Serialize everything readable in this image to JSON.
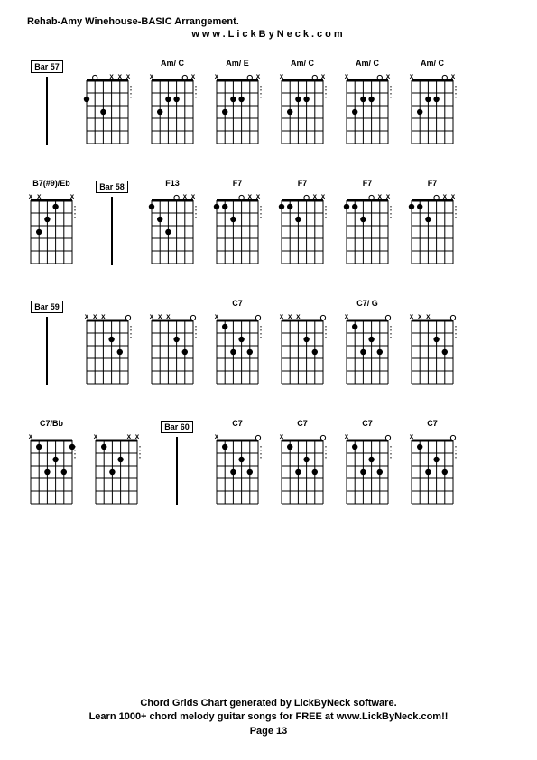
{
  "page": {
    "title": "Rehab-Amy Winehouse-BASIC Arrangement.",
    "subtitle": "www.LickByNeck.com",
    "footer_line1": "Chord Grids Chart generated by LickByNeck software.",
    "footer_line2": "Learn 1000+ chord melody guitar songs for FREE at www.LickByNeck.com!!",
    "footer_line3": "Page 13"
  },
  "grid_style": {
    "width": 46,
    "height": 70,
    "strings": 6,
    "frets": 5,
    "stroke": "#000000",
    "string_width": 1,
    "fret_width": 1,
    "nut_width": 3,
    "dot_radius": 3.2,
    "open_radius": 2.6
  },
  "rows": [
    [
      {
        "type": "bar",
        "label": "Bar 57"
      },
      {
        "type": "chord",
        "label": "",
        "mutes": [
          "",
          "",
          "",
          "x",
          "x",
          "x"
        ],
        "nut": true,
        "dots": [
          {
            "s": 2,
            "f": 1,
            "open": true
          },
          {
            "s": 1,
            "f": 2
          },
          {
            "s": 3,
            "f": 3
          }
        ]
      },
      {
        "type": "chord",
        "label": "Am/ C",
        "mutes": [
          "x",
          "",
          "",
          "",
          "",
          "x"
        ],
        "nut": true,
        "dots": [
          {
            "s": 5,
            "f": 1,
            "open": true
          },
          {
            "s": 4,
            "f": 2
          },
          {
            "s": 3,
            "f": 2
          },
          {
            "s": 2,
            "f": 3
          }
        ]
      },
      {
        "type": "chord",
        "label": "Am/ E",
        "mutes": [
          "x",
          "",
          "",
          "",
          "",
          "x"
        ],
        "nut": true,
        "dots": [
          {
            "s": 5,
            "f": 1,
            "open": true
          },
          {
            "s": 4,
            "f": 2
          },
          {
            "s": 3,
            "f": 2
          },
          {
            "s": 2,
            "f": 3
          }
        ]
      },
      {
        "type": "chord",
        "label": "Am/ C",
        "mutes": [
          "x",
          "",
          "",
          "",
          "",
          "x"
        ],
        "nut": true,
        "dots": [
          {
            "s": 5,
            "f": 1,
            "open": true
          },
          {
            "s": 4,
            "f": 2
          },
          {
            "s": 3,
            "f": 2
          },
          {
            "s": 2,
            "f": 3
          }
        ]
      },
      {
        "type": "chord",
        "label": "Am/ C",
        "mutes": [
          "x",
          "",
          "",
          "",
          "",
          "x"
        ],
        "nut": true,
        "dots": [
          {
            "s": 5,
            "f": 1,
            "open": true
          },
          {
            "s": 4,
            "f": 2
          },
          {
            "s": 3,
            "f": 2
          },
          {
            "s": 2,
            "f": 3
          }
        ]
      },
      {
        "type": "chord",
        "label": "Am/ C",
        "mutes": [
          "x",
          "",
          "",
          "",
          "",
          "x"
        ],
        "nut": true,
        "dots": [
          {
            "s": 5,
            "f": 1,
            "open": true
          },
          {
            "s": 4,
            "f": 2
          },
          {
            "s": 3,
            "f": 2
          },
          {
            "s": 2,
            "f": 3
          }
        ]
      }
    ],
    [
      {
        "type": "chord",
        "label": "B7(#9)/Eb",
        "mutes": [
          "x",
          "x",
          "",
          "",
          "",
          "x"
        ],
        "nut": true,
        "dots": [
          {
            "s": 4,
            "f": 1
          },
          {
            "s": 3,
            "f": 2
          },
          {
            "s": 2,
            "f": 3
          }
        ]
      },
      {
        "type": "bar",
        "label": "Bar 58"
      },
      {
        "type": "chord",
        "label": "F13",
        "mutes": [
          "",
          "",
          "",
          "",
          "x",
          "x"
        ],
        "nut": true,
        "dots": [
          {
            "s": 1,
            "f": 1
          },
          {
            "s": 4,
            "f": 1,
            "open": true
          },
          {
            "s": 2,
            "f": 2
          },
          {
            "s": 3,
            "f": 3
          }
        ]
      },
      {
        "type": "chord",
        "label": "F7",
        "mutes": [
          "",
          "",
          "",
          "",
          "x",
          "x"
        ],
        "nut": true,
        "dots": [
          {
            "s": 1,
            "f": 1
          },
          {
            "s": 2,
            "f": 1
          },
          {
            "s": 4,
            "f": 1,
            "open": true
          },
          {
            "s": 3,
            "f": 2
          }
        ]
      },
      {
        "type": "chord",
        "label": "F7",
        "mutes": [
          "",
          "",
          "",
          "",
          "x",
          "x"
        ],
        "nut": true,
        "dots": [
          {
            "s": 1,
            "f": 1
          },
          {
            "s": 2,
            "f": 1
          },
          {
            "s": 4,
            "f": 1,
            "open": true
          },
          {
            "s": 3,
            "f": 2
          }
        ]
      },
      {
        "type": "chord",
        "label": "F7",
        "mutes": [
          "",
          "",
          "",
          "",
          "x",
          "x"
        ],
        "nut": true,
        "dots": [
          {
            "s": 1,
            "f": 1
          },
          {
            "s": 2,
            "f": 1
          },
          {
            "s": 4,
            "f": 1,
            "open": true
          },
          {
            "s": 3,
            "f": 2
          }
        ]
      },
      {
        "type": "chord",
        "label": "F7",
        "mutes": [
          "",
          "",
          "",
          "",
          "x",
          "x"
        ],
        "nut": true,
        "dots": [
          {
            "s": 1,
            "f": 1
          },
          {
            "s": 2,
            "f": 1
          },
          {
            "s": 4,
            "f": 1,
            "open": true
          },
          {
            "s": 3,
            "f": 2
          }
        ]
      }
    ],
    [
      {
        "type": "bar",
        "label": "Bar 59"
      },
      {
        "type": "chord",
        "label": "",
        "mutes": [
          "x",
          "x",
          "x",
          "",
          "",
          ""
        ],
        "nut": true,
        "dots": [
          {
            "s": 6,
            "f": 1,
            "open": true
          },
          {
            "s": 4,
            "f": 2
          },
          {
            "s": 5,
            "f": 3
          }
        ]
      },
      {
        "type": "chord",
        "label": "",
        "mutes": [
          "x",
          "x",
          "x",
          "",
          "",
          ""
        ],
        "nut": true,
        "dots": [
          {
            "s": 6,
            "f": 1,
            "open": true
          },
          {
            "s": 4,
            "f": 2
          },
          {
            "s": 5,
            "f": 3
          }
        ]
      },
      {
        "type": "chord",
        "label": "C7",
        "mutes": [
          "x",
          "",
          "",
          "",
          "",
          ""
        ],
        "nut": true,
        "dots": [
          {
            "s": 6,
            "f": 1,
            "open": true
          },
          {
            "s": 2,
            "f": 1
          },
          {
            "s": 4,
            "f": 2
          },
          {
            "s": 3,
            "f": 3
          },
          {
            "s": 5,
            "f": 3
          }
        ]
      },
      {
        "type": "chord",
        "label": "",
        "mutes": [
          "x",
          "x",
          "x",
          "",
          "",
          ""
        ],
        "nut": true,
        "dots": [
          {
            "s": 6,
            "f": 1,
            "open": true
          },
          {
            "s": 4,
            "f": 2
          },
          {
            "s": 5,
            "f": 3
          }
        ]
      },
      {
        "type": "chord",
        "label": "C7/ G",
        "mutes": [
          "x",
          "",
          "",
          "",
          "",
          ""
        ],
        "nut": true,
        "dots": [
          {
            "s": 6,
            "f": 1,
            "open": true
          },
          {
            "s": 2,
            "f": 1
          },
          {
            "s": 4,
            "f": 2
          },
          {
            "s": 3,
            "f": 3
          },
          {
            "s": 5,
            "f": 3
          }
        ]
      },
      {
        "type": "chord",
        "label": "",
        "mutes": [
          "x",
          "x",
          "x",
          "",
          "",
          ""
        ],
        "nut": true,
        "dots": [
          {
            "s": 6,
            "f": 1,
            "open": true
          },
          {
            "s": 4,
            "f": 2
          },
          {
            "s": 5,
            "f": 3
          }
        ]
      }
    ],
    [
      {
        "type": "chord",
        "label": "C7/Bb",
        "mutes": [
          "x",
          "",
          "",
          "",
          "",
          ""
        ],
        "nut": true,
        "dots": [
          {
            "s": 2,
            "f": 1
          },
          {
            "s": 6,
            "f": 1
          },
          {
            "s": 4,
            "f": 2
          },
          {
            "s": 3,
            "f": 3
          },
          {
            "s": 5,
            "f": 3
          }
        ]
      },
      {
        "type": "chord",
        "label": "",
        "mutes": [
          "x",
          "",
          "",
          "",
          "x",
          "x"
        ],
        "nut": true,
        "dots": [
          {
            "s": 2,
            "f": 1
          },
          {
            "s": 4,
            "f": 2
          },
          {
            "s": 3,
            "f": 3
          }
        ]
      },
      {
        "type": "bar",
        "label": "Bar 60"
      },
      {
        "type": "chord",
        "label": "C7",
        "mutes": [
          "x",
          "",
          "",
          "",
          "",
          ""
        ],
        "nut": true,
        "dots": [
          {
            "s": 6,
            "f": 1,
            "open": true
          },
          {
            "s": 2,
            "f": 1
          },
          {
            "s": 4,
            "f": 2
          },
          {
            "s": 3,
            "f": 3
          },
          {
            "s": 5,
            "f": 3
          }
        ]
      },
      {
        "type": "chord",
        "label": "C7",
        "mutes": [
          "x",
          "",
          "",
          "",
          "",
          ""
        ],
        "nut": true,
        "dots": [
          {
            "s": 6,
            "f": 1,
            "open": true
          },
          {
            "s": 2,
            "f": 1
          },
          {
            "s": 4,
            "f": 2
          },
          {
            "s": 3,
            "f": 3
          },
          {
            "s": 5,
            "f": 3
          }
        ]
      },
      {
        "type": "chord",
        "label": "C7",
        "mutes": [
          "x",
          "",
          "",
          "",
          "",
          ""
        ],
        "nut": true,
        "dots": [
          {
            "s": 6,
            "f": 1,
            "open": true
          },
          {
            "s": 2,
            "f": 1
          },
          {
            "s": 4,
            "f": 2
          },
          {
            "s": 3,
            "f": 3
          },
          {
            "s": 5,
            "f": 3
          }
        ]
      },
      {
        "type": "chord",
        "label": "C7",
        "mutes": [
          "x",
          "",
          "",
          "",
          "",
          ""
        ],
        "nut": true,
        "dots": [
          {
            "s": 6,
            "f": 1,
            "open": true
          },
          {
            "s": 2,
            "f": 1
          },
          {
            "s": 4,
            "f": 2
          },
          {
            "s": 3,
            "f": 3
          },
          {
            "s": 5,
            "f": 3
          }
        ]
      }
    ]
  ]
}
